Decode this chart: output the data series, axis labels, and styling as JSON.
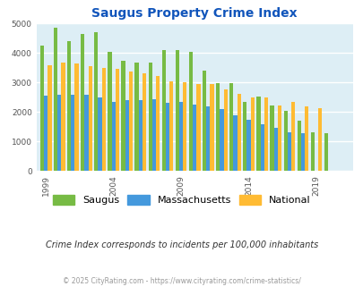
{
  "title": "Saugus Property Crime Index",
  "years": [
    1999,
    2000,
    2001,
    2002,
    2003,
    2004,
    2005,
    2006,
    2007,
    2008,
    2009,
    2010,
    2011,
    2012,
    2013,
    2014,
    2015,
    2016,
    2017,
    2018,
    2019,
    2020,
    2021
  ],
  "saugus": [
    4250,
    4870,
    4420,
    4650,
    4700,
    4030,
    3750,
    3680,
    3680,
    4090,
    4110,
    4050,
    3420,
    2970,
    2970,
    2360,
    2540,
    2230,
    2050,
    1720,
    1310,
    1290,
    0
  ],
  "massachusetts": [
    2550,
    2600,
    2600,
    2580,
    2490,
    2360,
    2410,
    2420,
    2440,
    2330,
    2350,
    2260,
    2190,
    2090,
    1900,
    1750,
    1580,
    1480,
    1310,
    1280,
    0,
    0,
    0
  ],
  "national": [
    3600,
    3680,
    3650,
    3570,
    3500,
    3460,
    3390,
    3310,
    3230,
    3050,
    3020,
    2960,
    2940,
    2760,
    2610,
    2500,
    2490,
    2220,
    2360,
    2200,
    2130,
    0,
    0
  ],
  "saugus_color": "#77bb44",
  "mass_color": "#4499dd",
  "national_color": "#ffbb33",
  "bg_color": "#ddeef5",
  "title_color": "#1155bb",
  "grid_color": "#ffffff",
  "ylim": [
    0,
    5000
  ],
  "yticks": [
    0,
    1000,
    2000,
    3000,
    4000,
    5000
  ],
  "subtitle": "Crime Index corresponds to incidents per 100,000 inhabitants",
  "footer": "© 2025 CityRating.com - https://www.cityrating.com/crime-statistics/",
  "legend_labels": [
    "Saugus",
    "Massachusetts",
    "National"
  ],
  "bar_width": 0.28,
  "xtick_years": [
    1999,
    2004,
    2009,
    2014,
    2019
  ]
}
